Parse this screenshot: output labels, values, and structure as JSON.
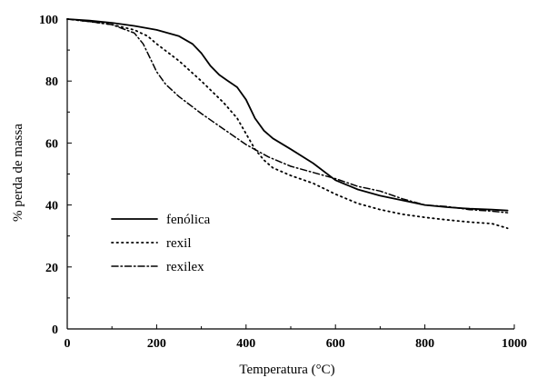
{
  "chart_data": {
    "type": "line",
    "xlabel": "Temperatura (°C)",
    "ylabel": "% perda de massa",
    "xlim": [
      0,
      1000
    ],
    "ylim": [
      0,
      100
    ],
    "xticks": [
      0,
      200,
      400,
      600,
      800,
      1000
    ],
    "yticks": [
      0,
      20,
      40,
      60,
      80,
      100
    ],
    "grid": false,
    "legend_position": "lower-left",
    "series": [
      {
        "name": "fenólica",
        "style": "solid",
        "x": [
          0,
          50,
          100,
          150,
          200,
          250,
          280,
          300,
          320,
          340,
          360,
          380,
          400,
          420,
          440,
          460,
          500,
          550,
          600,
          650,
          700,
          750,
          800,
          850,
          900,
          950,
          985
        ],
        "y": [
          100,
          99.5,
          98.8,
          97.8,
          96.5,
          94.5,
          92,
          89,
          85,
          82,
          80,
          78,
          74,
          68,
          64,
          61.5,
          58,
          53.5,
          48,
          45,
          43,
          41.5,
          40,
          39.3,
          38.8,
          38.5,
          38.2
        ]
      },
      {
        "name": "rexil",
        "style": "dotted",
        "x": [
          0,
          50,
          100,
          150,
          180,
          200,
          250,
          300,
          350,
          380,
          400,
          420,
          440,
          460,
          500,
          550,
          600,
          650,
          700,
          750,
          800,
          850,
          900,
          950,
          985
        ],
        "y": [
          100,
          99.2,
          98.2,
          96.5,
          94.5,
          92,
          86.5,
          80,
          73,
          68,
          63,
          58,
          54.5,
          52,
          49.5,
          47,
          43.5,
          40.5,
          38.5,
          37,
          36,
          35.2,
          34.5,
          34,
          32.5
        ]
      },
      {
        "name": "rexilex",
        "style": "dashdot",
        "x": [
          0,
          50,
          100,
          150,
          170,
          190,
          200,
          220,
          250,
          300,
          350,
          400,
          450,
          500,
          550,
          600,
          650,
          700,
          750,
          800,
          850,
          900,
          950,
          985
        ],
        "y": [
          100,
          99.2,
          98.2,
          95.5,
          92,
          86,
          83,
          79,
          75,
          69.5,
          64.5,
          59.5,
          55.5,
          52.5,
          50.5,
          48.5,
          46,
          44.5,
          42,
          40,
          39.5,
          38.5,
          38,
          37.5
        ]
      }
    ]
  },
  "colors": {
    "axis": "#000000",
    "line": "#000000",
    "background": "#ffffff"
  }
}
